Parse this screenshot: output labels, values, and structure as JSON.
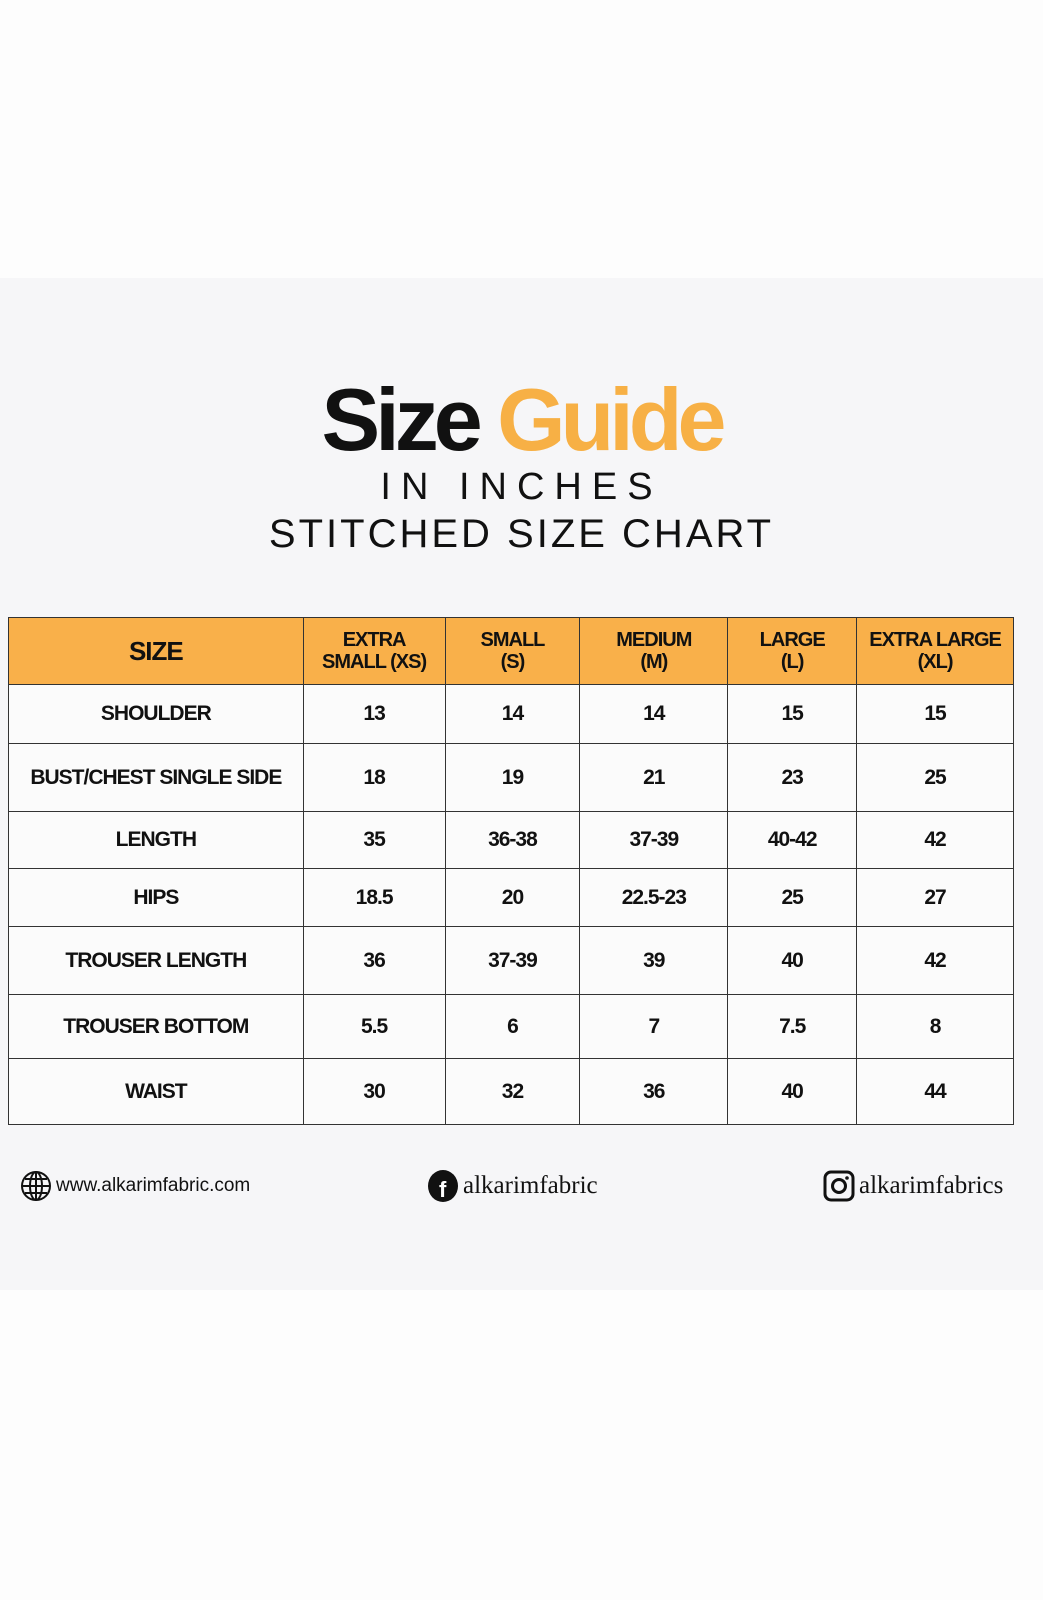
{
  "title": {
    "part1": "Size",
    "part2": "Guide",
    "accent_color": "#f7b045"
  },
  "subtitle": "IN INCHES",
  "chart_title": "STITCHED SIZE CHART",
  "table": {
    "header_color": "#f9b04a",
    "headers": [
      [
        "SIZE"
      ],
      [
        "EXTRA",
        "SMALL (XS)"
      ],
      [
        "SMALL",
        "(S)"
      ],
      [
        "MEDIUM",
        "(M)"
      ],
      [
        "LARGE",
        "(L)"
      ],
      [
        "EXTRA LARGE",
        "(XL)"
      ]
    ],
    "rows": [
      [
        "SHOULDER",
        "13",
        "14",
        "14",
        "15",
        "15"
      ],
      [
        "BUST/CHEST SINGLE SIDE",
        "18",
        "19",
        "21",
        "23",
        "25"
      ],
      [
        "LENGTH",
        "35",
        "36-38",
        "37-39",
        "40-42",
        "42"
      ],
      [
        "HIPS",
        "18.5",
        "20",
        "22.5-23",
        "25",
        "27"
      ],
      [
        "TROUSER LENGTH",
        "36",
        "37-39",
        "39",
        "40",
        "42"
      ],
      [
        "TROUSER BOTTOM",
        "5.5",
        "6",
        "7",
        "7.5",
        "8"
      ],
      [
        "WAIST",
        "30",
        "32",
        "36",
        "40",
        "44"
      ]
    ]
  },
  "footer": {
    "website": "www.alkarimfabric.com",
    "facebook": "alkarimfabric",
    "instagram": "alkarimfabrics",
    "icons": [
      "globe-icon",
      "facebook-icon",
      "instagram-icon"
    ]
  }
}
